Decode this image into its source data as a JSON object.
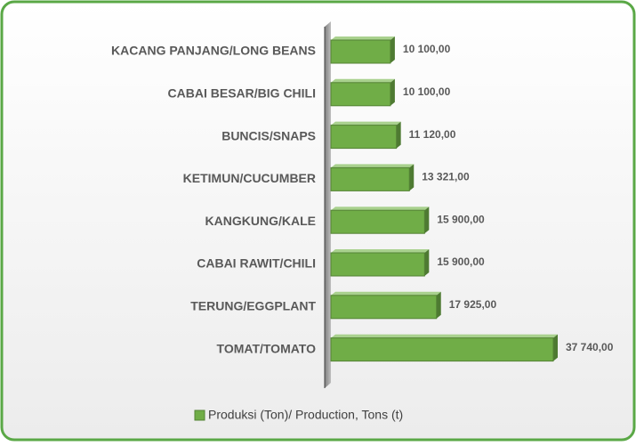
{
  "chart_data": {
    "type": "bar",
    "orientation": "horizontal",
    "categories": [
      "KACANG PANJANG/LONG BEANS",
      "CABAI BESAR/BIG CHILI",
      "BUNCIS/SNAPS",
      "KETIMUN/CUCUMBER",
      "KANGKUNG/KALE",
      "CABAI RAWIT/CHILI",
      "TERUNG/EGGPLANT",
      "TOMAT/TOMATO"
    ],
    "series": [
      {
        "name": "Produksi (Ton)/ Production, Tons (t)",
        "color": "#70ad47",
        "values": [
          10100,
          10100,
          11120,
          13321,
          15900,
          15900,
          17925,
          37740
        ],
        "value_labels": [
          "10 100,00",
          "10 100,00",
          "11 120,00",
          "13 321,00",
          "15 900,00",
          "15 900,00",
          "17 925,00",
          "37 740,00"
        ]
      }
    ],
    "xlim": [
      0,
      37740
    ],
    "legend": "bottom"
  }
}
